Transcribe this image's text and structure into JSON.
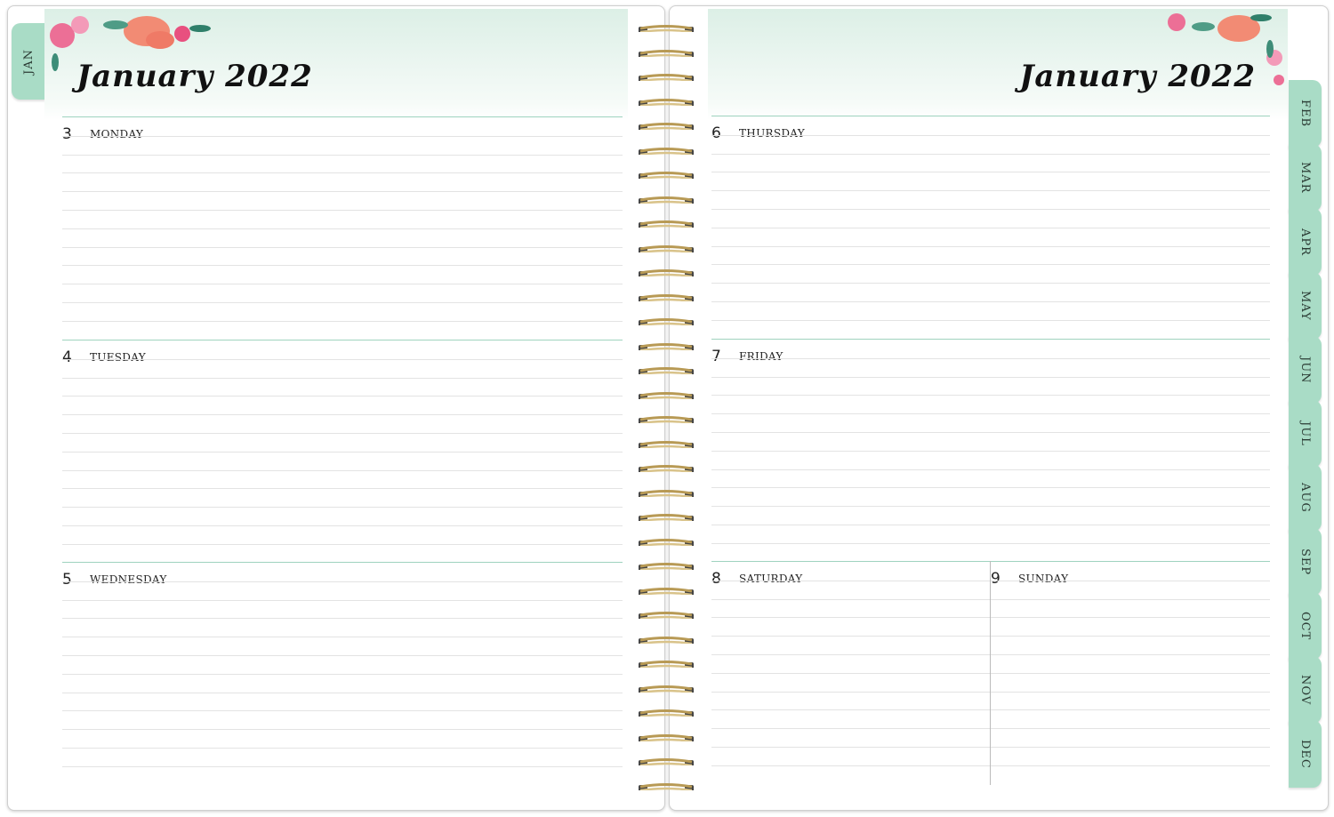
{
  "left_page": {
    "title": "January 2022",
    "tab": "JAN",
    "days": [
      {
        "num": "3",
        "name": "MONDAY"
      },
      {
        "num": "4",
        "name": "TUESDAY"
      },
      {
        "num": "5",
        "name": "WEDNESDAY"
      }
    ]
  },
  "right_page": {
    "title": "January 2022",
    "days": [
      {
        "num": "6",
        "name": "THURSDAY"
      },
      {
        "num": "7",
        "name": "FRIDAY"
      },
      {
        "num": "8",
        "name": "SATURDAY"
      },
      {
        "num": "9",
        "name": "SUNDAY"
      }
    ],
    "tabs": [
      "FEB",
      "MAR",
      "APR",
      "MAY",
      "JUN",
      "JUL",
      "AUG",
      "SEP",
      "OCT",
      "NOV",
      "DEC"
    ]
  },
  "colors": {
    "accent": "#a9dcc6",
    "rule": "#9fd3bf",
    "spiral": "#b89a55"
  }
}
